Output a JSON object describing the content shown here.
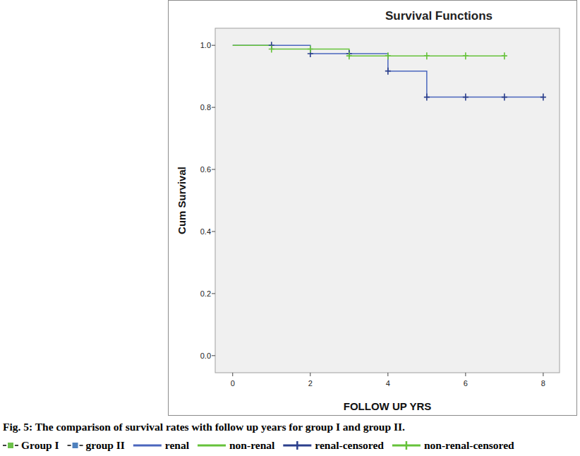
{
  "chart_data": {
    "type": "line",
    "title": "Survival Functions",
    "x_label": "FOLLOW UP YRS",
    "y_label": "Cum Survival",
    "caption": "Fig. 5: The comparison of survival rates with follow up years for group I and group II.",
    "groups": [
      {
        "name": "Group I",
        "color": "#6cc04a"
      },
      {
        "name": "group II",
        "color": "#4f81bd"
      }
    ],
    "xlim": [
      -0.45,
      8.42
    ],
    "ylim": [
      -0.055,
      1.055
    ],
    "xticks": [
      0,
      2,
      4,
      6,
      8
    ],
    "yticks": [
      {
        "value": 0,
        "label": "0.0"
      },
      0.2,
      0.4,
      0.6,
      0.8,
      {
        "value": 1,
        "label": "1.0"
      }
    ],
    "grid": false,
    "legend": "bottom",
    "series": [
      {
        "name": "renal",
        "type": "line",
        "line_style": "step",
        "color": "#4a66bd",
        "x": [
          0,
          2,
          4,
          5,
          8
        ],
        "values": [
          1.0,
          0.973,
          0.917,
          0.833,
          0.833
        ]
      },
      {
        "name": "non-renal",
        "type": "line",
        "line_style": "step",
        "color": "#66c23a",
        "x": [
          0,
          1,
          3,
          7
        ],
        "values": [
          1.0,
          0.988,
          0.966,
          0.966
        ]
      },
      {
        "name": "renal-censored",
        "type": "scatter",
        "marker": "plus",
        "color": "#2b3f8c",
        "x": [
          1,
          2,
          3,
          4,
          5,
          6,
          7,
          8
        ],
        "values": [
          1.0,
          0.973,
          0.973,
          0.917,
          0.833,
          0.833,
          0.833,
          0.833
        ]
      },
      {
        "name": "non-renal-censored",
        "type": "scatter",
        "marker": "plus",
        "color": "#66c23a",
        "x": [
          1,
          2,
          3,
          4,
          5,
          6,
          7
        ],
        "values": [
          0.988,
          0.988,
          0.966,
          0.966,
          0.966,
          0.966,
          0.966
        ]
      }
    ]
  }
}
